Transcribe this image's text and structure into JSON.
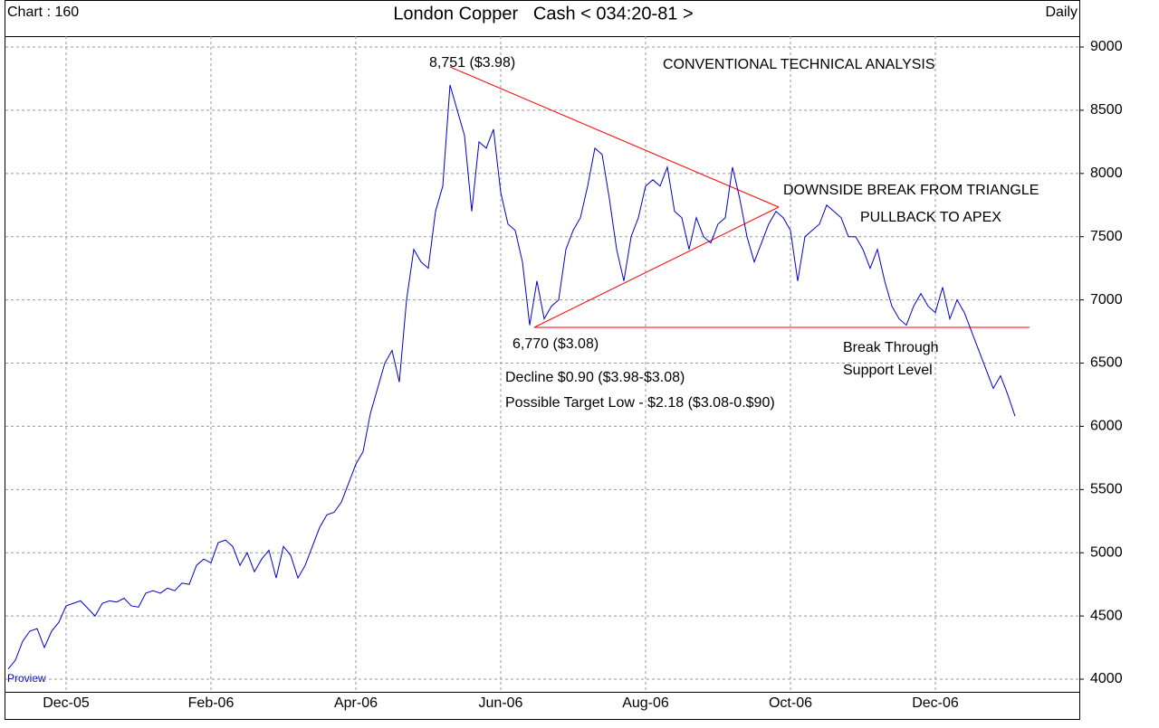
{
  "header": {
    "chart_id": "Chart : 160",
    "frequency": "Daily",
    "footer": "Proview"
  },
  "chart_data": {
    "type": "line",
    "title": "London Copper   Cash < 034:20-81 >",
    "color": "#0000cc",
    "grid": true,
    "ylim": [
      3900,
      9086
    ],
    "yticks": [
      4000,
      4500,
      5000,
      5500,
      6000,
      6500,
      7000,
      7500,
      8000,
      8500,
      9000
    ],
    "categories": [
      null,
      null,
      null,
      null,
      null,
      null,
      null,
      null,
      "Dec-05",
      null,
      null,
      null,
      null,
      null,
      null,
      null,
      null,
      null,
      null,
      null,
      null,
      null,
      null,
      null,
      null,
      null,
      null,
      null,
      "Feb-06",
      null,
      null,
      null,
      null,
      null,
      null,
      null,
      null,
      null,
      null,
      null,
      null,
      null,
      null,
      null,
      null,
      null,
      null,
      null,
      "Apr-06",
      null,
      null,
      null,
      null,
      null,
      null,
      null,
      null,
      null,
      null,
      null,
      null,
      null,
      null,
      null,
      null,
      null,
      null,
      null,
      "Jun-06",
      null,
      null,
      null,
      null,
      null,
      null,
      null,
      null,
      null,
      null,
      null,
      null,
      null,
      null,
      null,
      null,
      null,
      null,
      null,
      "Aug-06",
      null,
      null,
      null,
      null,
      null,
      null,
      null,
      null,
      null,
      null,
      null,
      null,
      null,
      null,
      null,
      null,
      null,
      null,
      null,
      "Oct-06",
      null,
      null,
      null,
      null,
      null,
      null,
      null,
      null,
      null,
      null,
      null,
      null,
      null,
      null,
      null,
      null,
      null,
      null,
      null,
      "Dec-06",
      null,
      null,
      null,
      null,
      null,
      null,
      null,
      null,
      null,
      null,
      null
    ],
    "values": [
      4080,
      4150,
      4300,
      4380,
      4400,
      4250,
      4380,
      4450,
      4580,
      4600,
      4620,
      4560,
      4500,
      4600,
      4620,
      4610,
      4640,
      4580,
      4570,
      4680,
      4700,
      4680,
      4720,
      4700,
      4760,
      4750,
      4900,
      4950,
      4920,
      5080,
      5100,
      5050,
      4900,
      5000,
      4850,
      4950,
      5020,
      4800,
      5050,
      4980,
      4800,
      4900,
      5050,
      5200,
      5300,
      5320,
      5400,
      5550,
      5700,
      5800,
      6100,
      6300,
      6500,
      6600,
      6350,
      7000,
      7400,
      7300,
      7250,
      7700,
      7900,
      8700,
      8500,
      8300,
      7700,
      8250,
      8200,
      8350,
      7850,
      7600,
      7550,
      7300,
      6800,
      7150,
      6850,
      6950,
      7000,
      7400,
      7550,
      7650,
      7900,
      8200,
      8150,
      7800,
      7400,
      7150,
      7500,
      7650,
      7900,
      7950,
      7900,
      8050,
      7700,
      7650,
      7400,
      7650,
      7500,
      7450,
      7600,
      7650,
      8050,
      7800,
      7500,
      7300,
      7450,
      7600,
      7700,
      7650,
      7550,
      7150,
      7500,
      7550,
      7600,
      7750,
      7700,
      7650,
      7500,
      7500,
      7400,
      7250,
      7400,
      7150,
      6950,
      6850,
      6800,
      6950,
      7050,
      6950,
      6900,
      7100,
      6850,
      7000,
      6900,
      6750,
      6600,
      6450,
      6300,
      6400,
      6250,
      6080
    ],
    "annotations": [
      "8,751 ($3.98)",
      "CONVENTIONAL TECHNICAL ANALYSIS",
      "DOWNSIDE BREAK FROM TRIANGLE",
      "PULLBACK TO APEX",
      "6,770 ($3.08)",
      "Break Through",
      "Support Level",
      "Decline $0.90 ($3.98-$3.08)",
      "Possible Target Low - $2.18 ($3.08-0.$90)"
    ]
  }
}
